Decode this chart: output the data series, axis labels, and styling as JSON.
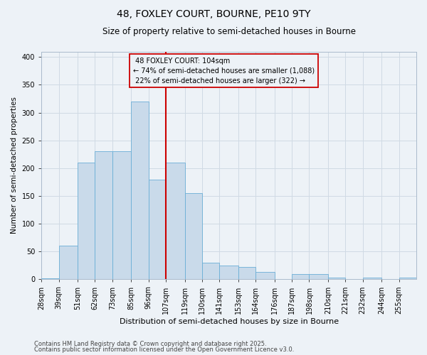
{
  "title1": "48, FOXLEY COURT, BOURNE, PE10 9TY",
  "title2": "Size of property relative to semi-detached houses in Bourne",
  "xlabel": "Distribution of semi-detached houses by size in Bourne",
  "ylabel": "Number of semi-detached properties",
  "property_label": "48 FOXLEY COURT: 104sqm",
  "pct_smaller": 74,
  "count_smaller": 1088,
  "pct_larger": 22,
  "count_larger": 322,
  "bin_labels": [
    "28sqm",
    "39sqm",
    "51sqm",
    "62sqm",
    "73sqm",
    "85sqm",
    "96sqm",
    "107sqm",
    "119sqm",
    "130sqm",
    "141sqm",
    "153sqm",
    "164sqm",
    "176sqm",
    "187sqm",
    "198sqm",
    "210sqm",
    "221sqm",
    "232sqm",
    "244sqm",
    "255sqm"
  ],
  "bin_edges": [
    28,
    39,
    51,
    62,
    73,
    85,
    96,
    107,
    119,
    130,
    141,
    153,
    164,
    176,
    187,
    198,
    210,
    221,
    232,
    244,
    255
  ],
  "bar_heights": [
    2,
    60,
    210,
    230,
    230,
    320,
    180,
    210,
    155,
    30,
    25,
    22,
    13,
    0,
    9,
    9,
    3,
    0,
    3,
    0,
    3
  ],
  "bar_color": "#c9daea",
  "bar_edge_color": "#6aaed6",
  "vline_x": 107,
  "vline_color": "#cc0000",
  "annotation_box_color": "#cc0000",
  "grid_color": "#d0dae4",
  "bg_color": "#edf2f7",
  "footnote1": "Contains HM Land Registry data © Crown copyright and database right 2025.",
  "footnote2": "Contains public sector information licensed under the Open Government Licence v3.0.",
  "ylim": [
    0,
    410
  ],
  "title1_fontsize": 10,
  "title2_fontsize": 8.5,
  "xlabel_fontsize": 8,
  "ylabel_fontsize": 7.5,
  "tick_fontsize": 7,
  "annot_fontsize": 7,
  "footnote_fontsize": 6
}
